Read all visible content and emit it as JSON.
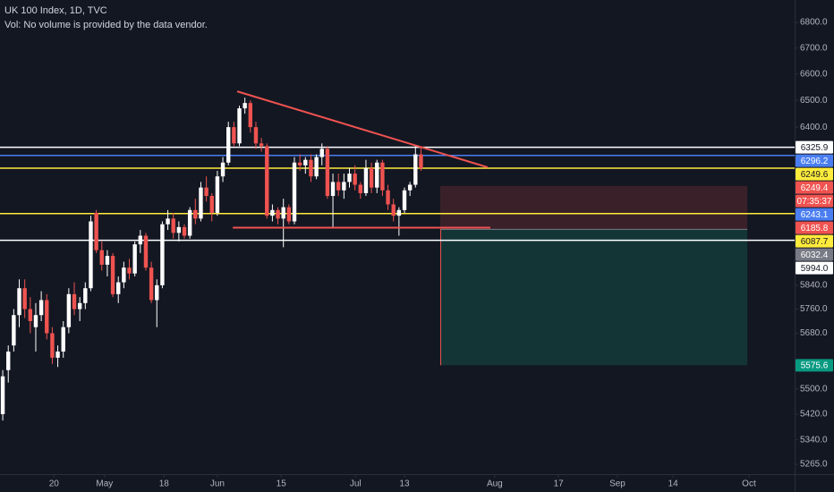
{
  "chart_data": {
    "type": "candlestick",
    "title": "UK 100 Index, 1D, TVC",
    "subtitle": "Vol: No volume is provided by the data vendor.",
    "up_color": "#ffffff",
    "down_color": "#ef5350",
    "log_scale": true,
    "open": [
      5420,
      5560,
      5640,
      5740,
      5830,
      5760,
      5700,
      5740,
      5790,
      5680,
      5600,
      5620,
      5700,
      5810,
      5760,
      5780,
      5830,
      6090,
      5960,
      5910,
      5940,
      5810,
      5850,
      5900,
      5880,
      5980,
      6010,
      5900,
      5790,
      5840,
      6050,
      6070,
      6020,
      6040,
      6010,
      6100,
      6070,
      6180,
      6150,
      6090,
      6220,
      6270,
      6400,
      6340,
      6470,
      6490,
      6400,
      6340,
      6330,
      6080,
      6100,
      6070,
      6110,
      6060,
      6270,
      6260,
      6280,
      6220,
      6290,
      6320,
      6150,
      6200,
      6170,
      6200,
      6230,
      6190,
      6160,
      6250,
      6180,
      6270,
      6170,
      6120,
      6080,
      6100,
      6170,
      6190,
      6300
    ],
    "high": [
      5560,
      5640,
      5760,
      5860,
      5860,
      5800,
      5780,
      5820,
      5810,
      5700,
      5640,
      5720,
      5830,
      5850,
      5800,
      5850,
      6080,
      6100,
      5990,
      5960,
      5950,
      5870,
      5920,
      5930,
      5990,
      6030,
      6020,
      5920,
      5860,
      6060,
      6100,
      6090,
      6060,
      6050,
      6110,
      6140,
      6200,
      6220,
      6160,
      6240,
      6290,
      6420,
      6420,
      6480,
      6510,
      6500,
      6420,
      6360,
      6340,
      6120,
      6110,
      6140,
      6120,
      6290,
      6300,
      6290,
      6300,
      6300,
      6340,
      6330,
      6230,
      6230,
      6230,
      6250,
      6260,
      6200,
      6280,
      6270,
      6280,
      6280,
      6190,
      6140,
      6110,
      6180,
      6200,
      6330,
      6330
    ],
    "low": [
      5400,
      5520,
      5620,
      5700,
      5730,
      5680,
      5620,
      5720,
      5660,
      5580,
      5570,
      5600,
      5680,
      5740,
      5720,
      5760,
      5820,
      5950,
      5890,
      5870,
      5800,
      5780,
      5830,
      5860,
      5870,
      5950,
      5890,
      5780,
      5700,
      5830,
      6030,
      6000,
      5990,
      6000,
      6000,
      6050,
      6060,
      6130,
      6060,
      6080,
      6200,
      6260,
      6330,
      6330,
      6450,
      6380,
      6320,
      6310,
      6070,
      6060,
      6050,
      5970,
      6050,
      6050,
      6240,
      6230,
      6200,
      6210,
      6260,
      6140,
      6040,
      6150,
      6140,
      6180,
      6170,
      6140,
      6150,
      6160,
      6160,
      6150,
      6100,
      6060,
      6010,
      6090,
      6150,
      6180,
      6240
    ],
    "close": [
      5540,
      5620,
      5740,
      5830,
      5760,
      5720,
      5740,
      5790,
      5680,
      5600,
      5620,
      5700,
      5810,
      5760,
      5780,
      5830,
      6060,
      5960,
      5910,
      5940,
      5810,
      5850,
      5900,
      5880,
      5980,
      6010,
      5900,
      5790,
      5840,
      6050,
      6070,
      6020,
      6040,
      6010,
      6100,
      6070,
      6180,
      6150,
      6090,
      6220,
      6270,
      6400,
      6340,
      6470,
      6490,
      6400,
      6340,
      6330,
      6080,
      6100,
      6070,
      6110,
      6060,
      6270,
      6260,
      6280,
      6220,
      6290,
      6320,
      6150,
      6200,
      6170,
      6200,
      6230,
      6190,
      6160,
      6250,
      6180,
      6270,
      6170,
      6120,
      6080,
      6100,
      6170,
      6190,
      6300,
      6249.4
    ],
    "xlim": [
      -0.5,
      143.9
    ],
    "xticks": [
      {
        "value": 9.3,
        "label": "20"
      },
      {
        "value": 18.5,
        "label": "May"
      },
      {
        "value": 29.3,
        "label": "18"
      },
      {
        "value": 39,
        "label": "Jun"
      },
      {
        "value": 50.6,
        "label": "15"
      },
      {
        "value": 64.1,
        "label": "Jul"
      },
      {
        "value": 73,
        "label": "13"
      },
      {
        "value": 89.4,
        "label": "Aug"
      },
      {
        "value": 101,
        "label": "17"
      },
      {
        "value": 111.7,
        "label": "Sep"
      },
      {
        "value": 121.8,
        "label": "14"
      },
      {
        "value": 135.6,
        "label": "Oct"
      }
    ],
    "ylim": [
      5235,
      6889
    ],
    "yticks": [
      {
        "value": 6800,
        "label": "6800.0"
      },
      {
        "value": 6700,
        "label": "6700.0"
      },
      {
        "value": 6600,
        "label": "6600.0"
      },
      {
        "value": 6500,
        "label": "6500.0"
      },
      {
        "value": 6400,
        "label": "6400.0"
      },
      {
        "value": 5840,
        "label": "5840.0"
      },
      {
        "value": 5760,
        "label": "5760.0"
      },
      {
        "value": 5680,
        "label": "5680.0"
      },
      {
        "value": 5500,
        "label": "5500.0"
      },
      {
        "value": 5420,
        "label": "5420.0"
      },
      {
        "value": 5340,
        "label": "5340.0"
      },
      {
        "value": 5265,
        "label": "5265.0"
      }
    ],
    "price_tags": [
      {
        "value": 6325.9,
        "bg": "#ffffff",
        "fg": "#131722",
        "line": true
      },
      {
        "value": 6296.2,
        "bg": "#4a7ef0",
        "fg": "#ffffff",
        "line": true
      },
      {
        "value": 6249.6,
        "bg": "#ffeb3b",
        "fg": "#131722",
        "line": true
      },
      {
        "value": 6249.4,
        "bg": "#ef5350",
        "fg": "#ffffff",
        "line": false,
        "countdown": "07:35:37"
      },
      {
        "value": 6243.1,
        "bg": "#4a7ef0",
        "fg": "#ffffff",
        "line": false
      },
      {
        "value": 6185.8,
        "bg": "#ef5350",
        "fg": "#ffffff",
        "line": false
      },
      {
        "value": 6087.7,
        "bg": "#ffeb3b",
        "fg": "#131722",
        "line": true
      },
      {
        "value": 6032.4,
        "bg": "#787b86",
        "fg": "#ffffff",
        "line": false
      },
      {
        "value": 5994,
        "label": "5994.0",
        "bg": "#ffffff",
        "fg": "#131722",
        "line": true
      },
      {
        "value": 5575.6,
        "bg": "#089981",
        "fg": "#ffffff",
        "line": false
      }
    ],
    "trendline": {
      "x": [
        42.6,
        88.1
      ],
      "y": [
        6534,
        6253
      ],
      "color": "#ef5350"
    },
    "hline": {
      "x": [
        41.8,
        88.6
      ],
      "y": 6038,
      "color": "#ef5350"
    },
    "position": {
      "entry": 6032.4,
      "stop": 6185.8,
      "target": 5575.6,
      "x": [
        79.5,
        135.3
      ],
      "stop_color": "#3a2129",
      "target_color": "#143536"
    }
  }
}
